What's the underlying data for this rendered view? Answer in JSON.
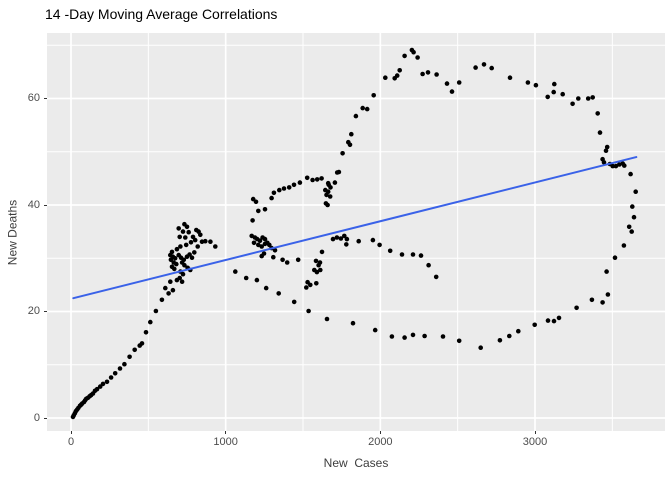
{
  "title": "14 -Day Moving Average Correlations",
  "chart_data": {
    "type": "scatter",
    "title": "14 -Day Moving Average Correlations",
    "xlabel": "New  Cases",
    "ylabel": "New Deaths",
    "legend": "none",
    "grid": "on",
    "x_ticks": [
      0,
      1000,
      2000,
      3000
    ],
    "y_ticks": [
      0,
      20,
      40,
      60
    ],
    "x_minor": [
      500,
      1500,
      2500,
      3500
    ],
    "y_minor": [
      10,
      30,
      50,
      70
    ],
    "xlim": [
      -155,
      3840
    ],
    "ylim": [
      -2.4,
      72.3
    ],
    "colors": {
      "panel_bg": "#EBEBEB",
      "grid_major": "#FFFFFF",
      "grid_minor": "#FFFFFF",
      "point": "#000000",
      "trend": "#3A62E8",
      "axis_text": "#4D4D4D",
      "title_text": "#000000"
    },
    "trend_line": {
      "x1": 15,
      "y1": 22.5,
      "x2": 3655,
      "y2": 49.0
    },
    "points": [
      [
        13,
        0.2
      ],
      [
        18,
        0.5
      ],
      [
        25,
        0.9
      ],
      [
        32,
        1.3
      ],
      [
        40,
        1.6
      ],
      [
        48,
        1.9
      ],
      [
        58,
        2.3
      ],
      [
        65,
        2.5
      ],
      [
        72,
        2.7
      ],
      [
        84,
        3.0
      ],
      [
        91,
        3.3
      ],
      [
        99,
        3.6
      ],
      [
        110,
        3.8
      ],
      [
        121,
        4.1
      ],
      [
        130,
        4.3
      ],
      [
        142,
        4.6
      ],
      [
        155,
        5.1
      ],
      [
        168,
        5.4
      ],
      [
        189,
        5.9
      ],
      [
        207,
        6.4
      ],
      [
        233,
        6.8
      ],
      [
        259,
        7.6
      ],
      [
        286,
        8.4
      ],
      [
        317,
        9.3
      ],
      [
        345,
        10.1
      ],
      [
        379,
        11.5
      ],
      [
        412,
        12.8
      ],
      [
        444,
        13.6
      ],
      [
        459,
        14.0
      ],
      [
        485,
        16.1
      ],
      [
        513,
        18.0
      ],
      [
        549,
        20.1
      ],
      [
        588,
        22.2
      ],
      [
        610,
        24.4
      ],
      [
        631,
        23.4
      ],
      [
        642,
        25.6
      ],
      [
        659,
        24.0
      ],
      [
        696,
        35.6
      ],
      [
        733,
        36.4
      ],
      [
        750,
        35.9
      ],
      [
        724,
        35.0
      ],
      [
        761,
        34.9
      ],
      [
        703,
        34.0
      ],
      [
        739,
        33.9
      ],
      [
        810,
        35.3
      ],
      [
        825,
        35.0
      ],
      [
        836,
        34.4
      ],
      [
        789,
        34.0
      ],
      [
        803,
        33.4
      ],
      [
        776,
        33.0
      ],
      [
        745,
        32.5
      ],
      [
        707,
        32.2
      ],
      [
        685,
        31.7
      ],
      [
        653,
        31.2
      ],
      [
        642,
        30.6
      ],
      [
        659,
        30.3
      ],
      [
        674,
        30.0
      ],
      [
        646,
        29.7
      ],
      [
        664,
        29.2
      ],
      [
        681,
        28.9
      ],
      [
        653,
        28.4
      ],
      [
        668,
        28.0
      ],
      [
        696,
        30.6
      ],
      [
        711,
        30.1
      ],
      [
        729,
        29.7
      ],
      [
        718,
        29.2
      ],
      [
        733,
        28.7
      ],
      [
        750,
        30.3
      ],
      [
        767,
        30.7
      ],
      [
        782,
        30.1
      ],
      [
        754,
        28.2
      ],
      [
        771,
        27.8
      ],
      [
        797,
        31.1
      ],
      [
        819,
        32.2
      ],
      [
        847,
        33.1
      ],
      [
        868,
        33.2
      ],
      [
        901,
        33.1
      ],
      [
        933,
        32.2
      ],
      [
        707,
        27.5
      ],
      [
        724,
        27.0
      ],
      [
        703,
        26.3
      ],
      [
        685,
        25.9
      ],
      [
        718,
        25.6
      ],
      [
        1062,
        27.5
      ],
      [
        1133,
        26.3
      ],
      [
        1168,
        34.2
      ],
      [
        1189,
        33.9
      ],
      [
        1204,
        33.6
      ],
      [
        1222,
        33.3
      ],
      [
        1239,
        33.9
      ],
      [
        1254,
        33.6
      ],
      [
        1183,
        32.9
      ],
      [
        1211,
        32.5
      ],
      [
        1233,
        32.2
      ],
      [
        1254,
        32.7
      ],
      [
        1269,
        32.9
      ],
      [
        1282,
        32.5
      ],
      [
        1297,
        31.9
      ],
      [
        1319,
        31.5
      ],
      [
        1248,
        30.9
      ],
      [
        1233,
        30.4
      ],
      [
        1308,
        30.2
      ],
      [
        1368,
        29.7
      ],
      [
        1398,
        29.2
      ],
      [
        1469,
        29.7
      ],
      [
        1521,
        24.5
      ],
      [
        1530,
        25.5
      ],
      [
        1547,
        25.0
      ],
      [
        1586,
        25.3
      ],
      [
        1573,
        27.8
      ],
      [
        1590,
        27.4
      ],
      [
        1601,
        28.7
      ],
      [
        1612,
        27.8
      ],
      [
        1623,
        31.2
      ],
      [
        1584,
        29.5
      ],
      [
        1610,
        29.2
      ],
      [
        1178,
        41.1
      ],
      [
        1196,
        40.6
      ],
      [
        1211,
        38.9
      ],
      [
        1254,
        39.2
      ],
      [
        1174,
        37.1
      ],
      [
        1297,
        41.3
      ],
      [
        1312,
        42.3
      ],
      [
        1347,
        42.8
      ],
      [
        1377,
        43.1
      ],
      [
        1411,
        43.3
      ],
      [
        1442,
        43.8
      ],
      [
        1480,
        44.2
      ],
      [
        1527,
        45.1
      ],
      [
        1562,
        44.7
      ],
      [
        1592,
        44.8
      ],
      [
        1620,
        45.0
      ],
      [
        1644,
        42.8
      ],
      [
        1663,
        44.1
      ],
      [
        1666,
        43.8
      ],
      [
        1678,
        43.3
      ],
      [
        1706,
        44.2
      ],
      [
        1676,
        41.6
      ],
      [
        1659,
        40.0
      ],
      [
        1648,
        40.3
      ],
      [
        1663,
        42.5
      ],
      [
        1652,
        41.9
      ],
      [
        1694,
        33.6
      ],
      [
        1719,
        33.9
      ],
      [
        1745,
        33.7
      ],
      [
        1767,
        34.2
      ],
      [
        1784,
        33.6
      ],
      [
        1780,
        32.6
      ],
      [
        1860,
        33.2
      ],
      [
        1952,
        33.4
      ],
      [
        1995,
        32.5
      ],
      [
        2064,
        31.4
      ],
      [
        2140,
        30.7
      ],
      [
        2211,
        30.7
      ],
      [
        2263,
        30.5
      ],
      [
        2312,
        28.7
      ],
      [
        2361,
        26.5
      ],
      [
        1202,
        25.9
      ],
      [
        1262,
        24.4
      ],
      [
        1343,
        23.4
      ],
      [
        1443,
        21.8
      ],
      [
        1536,
        20.1
      ],
      [
        1655,
        18.6
      ],
      [
        1823,
        17.8
      ],
      [
        1967,
        16.5
      ],
      [
        2075,
        15.3
      ],
      [
        2157,
        15.1
      ],
      [
        2211,
        15.6
      ],
      [
        2286,
        15.4
      ],
      [
        2405,
        15.3
      ],
      [
        2510,
        14.5
      ],
      [
        2649,
        13.2
      ],
      [
        2773,
        14.6
      ],
      [
        2834,
        15.4
      ],
      [
        2892,
        16.3
      ],
      [
        2998,
        17.5
      ],
      [
        3084,
        18.3
      ],
      [
        3123,
        18.2
      ],
      [
        3155,
        18.8
      ],
      [
        3269,
        20.7
      ],
      [
        3368,
        22.2
      ],
      [
        3437,
        21.7
      ],
      [
        3471,
        23.2
      ],
      [
        3463,
        27.5
      ],
      [
        3517,
        30.1
      ],
      [
        3575,
        32.4
      ],
      [
        3609,
        35.9
      ],
      [
        3625,
        35.0
      ],
      [
        3640,
        37.7
      ],
      [
        3629,
        39.7
      ],
      [
        3651,
        42.5
      ],
      [
        3618,
        45.8
      ],
      [
        3577,
        47.4
      ],
      [
        3567,
        47.8
      ],
      [
        3545,
        47.6
      ],
      [
        3523,
        47.3
      ],
      [
        3502,
        47.3
      ],
      [
        3484,
        47.7
      ],
      [
        3446,
        48.0
      ],
      [
        3437,
        48.6
      ],
      [
        3459,
        50.2
      ],
      [
        3467,
        50.9
      ],
      [
        3420,
        53.6
      ],
      [
        3405,
        57.2
      ],
      [
        3373,
        60.2
      ],
      [
        3344,
        60.0
      ],
      [
        3280,
        60.0
      ],
      [
        3243,
        59.0
      ],
      [
        3179,
        60.8
      ],
      [
        3121,
        61.2
      ],
      [
        3125,
        62.7
      ],
      [
        3082,
        60.3
      ],
      [
        3006,
        62.5
      ],
      [
        2954,
        63.0
      ],
      [
        2838,
        63.9
      ],
      [
        2720,
        65.7
      ],
      [
        2670,
        66.4
      ],
      [
        2616,
        65.8
      ],
      [
        2510,
        63.0
      ],
      [
        2463,
        61.3
      ],
      [
        2431,
        62.8
      ],
      [
        2364,
        64.5
      ],
      [
        2308,
        64.9
      ],
      [
        2273,
        64.6
      ],
      [
        2241,
        67.7
      ],
      [
        2215,
        68.7
      ],
      [
        2204,
        69.1
      ],
      [
        2157,
        68.0
      ],
      [
        2125,
        65.3
      ],
      [
        2109,
        64.3
      ],
      [
        2093,
        63.8
      ],
      [
        2032,
        63.9
      ],
      [
        1957,
        60.6
      ],
      [
        1915,
        58.0
      ],
      [
        1886,
        58.2
      ],
      [
        1842,
        56.7
      ],
      [
        1812,
        53.3
      ],
      [
        1804,
        51.3
      ],
      [
        1793,
        51.8
      ],
      [
        1756,
        49.7
      ],
      [
        1732,
        46.2
      ],
      [
        1721,
        46.1
      ]
    ]
  }
}
